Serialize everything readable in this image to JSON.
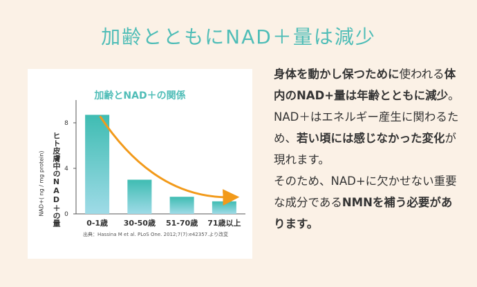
{
  "headline": "加齢とともにNAD＋量は減少",
  "chart": {
    "title": "加齢とNAD＋の関係",
    "ylabel_small": "NAD+( ng / mg protein)",
    "ylabel_main": "ヒト皮膚中のNAD＋の量",
    "source": "出典：Hassina M et al. PLoS One. 2012;7(7):e42357.より改変"
  },
  "chart_data": {
    "type": "bar",
    "title": "加齢とNAD＋の関係",
    "categories": [
      "0-1歳",
      "30-50歳",
      "51-70歳",
      "71歳以上"
    ],
    "values": [
      8.7,
      3.0,
      1.5,
      1.1
    ],
    "ylabel": "ヒト皮膚中のNAD＋の量",
    "yunit": "NAD+( ng / mg protein)",
    "ylim": [
      0,
      10
    ],
    "yticks": [
      0,
      4,
      8
    ],
    "grid": false,
    "bar_colors": [
      "#3fbcb2",
      "#9fdbe7"
    ],
    "trend_arrow_color": "#f29a1a"
  },
  "body": {
    "paragraphs": [
      [
        {
          "t": "身体を動かし保つために",
          "b": true
        },
        {
          "t": "使われる",
          "b": false
        },
        {
          "t": "体内のNAD+量は年齢とともに減少",
          "b": true
        },
        {
          "t": "。",
          "b": false
        }
      ],
      [
        {
          "t": "NAD＋はエネルギー産生に関わるため、",
          "b": false
        },
        {
          "t": "若い頃には感じなかった変化",
          "b": true
        },
        {
          "t": "が現れます。",
          "b": false
        }
      ],
      [
        {
          "t": "そのため、NAD+に欠かせない重要な成分である",
          "b": false
        },
        {
          "t": "NMNを補う必要があります。",
          "b": true
        }
      ]
    ]
  }
}
